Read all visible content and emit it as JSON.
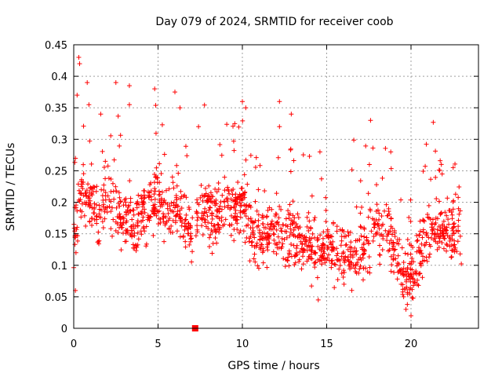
{
  "chart_data": {
    "type": "scatter",
    "title": "Day 079 of 2024, SRMTID for receiver coob",
    "xlabel": "GPS time / hours",
    "ylabel": "SRMTID / TECUs",
    "xlim": [
      0,
      24
    ],
    "ylim": [
      0,
      0.45
    ],
    "x_ticks": [
      0,
      5,
      10,
      15,
      20
    ],
    "y_ticks": [
      0,
      0.05,
      0.1,
      0.15,
      0.2,
      0.25,
      0.3,
      0.35,
      0.4,
      0.45
    ],
    "y_tick_labels": [
      "0",
      "0.05",
      "0.1",
      "0.15",
      "0.2",
      "0.25",
      "0.3",
      "0.35",
      "0.4",
      "0.45"
    ],
    "grid": true,
    "marker": "+",
    "color": "#ff0000",
    "gap_marker": {
      "x": 7.2,
      "y": 0
    },
    "series": [
      {
        "name": "SRMTID",
        "trend": [
          [
            0.0,
            0.14
          ],
          [
            0.5,
            0.22
          ],
          [
            1.0,
            0.2
          ],
          [
            1.5,
            0.17
          ],
          [
            2.0,
            0.22
          ],
          [
            2.5,
            0.18
          ],
          [
            3.0,
            0.17
          ],
          [
            3.5,
            0.16
          ],
          [
            4.0,
            0.18
          ],
          [
            4.5,
            0.2
          ],
          [
            5.0,
            0.21
          ],
          [
            5.5,
            0.18
          ],
          [
            6.0,
            0.2
          ],
          [
            6.5,
            0.17
          ],
          [
            7.0,
            0.14
          ],
          [
            7.5,
            0.19
          ],
          [
            8.0,
            0.18
          ],
          [
            8.5,
            0.19
          ],
          [
            9.0,
            0.19
          ],
          [
            9.5,
            0.19
          ],
          [
            10.0,
            0.2
          ],
          [
            10.5,
            0.16
          ],
          [
            11.0,
            0.14
          ],
          [
            11.5,
            0.15
          ],
          [
            12.0,
            0.16
          ],
          [
            12.5,
            0.14
          ],
          [
            13.0,
            0.15
          ],
          [
            13.5,
            0.13
          ],
          [
            14.0,
            0.14
          ],
          [
            14.5,
            0.12
          ],
          [
            15.0,
            0.14
          ],
          [
            15.5,
            0.12
          ],
          [
            16.0,
            0.11
          ],
          [
            16.5,
            0.12
          ],
          [
            17.0,
            0.12
          ],
          [
            17.5,
            0.14
          ],
          [
            18.0,
            0.16
          ],
          [
            18.5,
            0.16
          ],
          [
            19.0,
            0.12
          ],
          [
            19.5,
            0.09
          ],
          [
            20.0,
            0.08
          ],
          [
            20.5,
            0.12
          ],
          [
            21.0,
            0.16
          ],
          [
            21.5,
            0.15
          ],
          [
            22.0,
            0.16
          ],
          [
            22.5,
            0.15
          ],
          [
            23.0,
            0.16
          ]
        ],
        "spikes": [
          [
            0.3,
            0.43
          ],
          [
            0.35,
            0.42
          ],
          [
            0.2,
            0.37
          ],
          [
            0.8,
            0.39
          ],
          [
            0.9,
            0.355
          ],
          [
            1.6,
            0.34
          ],
          [
            2.5,
            0.39
          ],
          [
            3.3,
            0.385
          ],
          [
            3.3,
            0.355
          ],
          [
            4.8,
            0.38
          ],
          [
            6.0,
            0.375
          ],
          [
            6.3,
            0.35
          ],
          [
            7.4,
            0.32
          ],
          [
            10.0,
            0.36
          ],
          [
            10.2,
            0.35
          ],
          [
            12.2,
            0.36
          ],
          [
            12.2,
            0.32
          ],
          [
            12.9,
            0.34
          ],
          [
            14.6,
            0.28
          ],
          [
            17.6,
            0.33
          ],
          [
            18.8,
            0.28
          ],
          [
            21.8,
            0.26
          ],
          [
            22.5,
            0.255
          ],
          [
            19.7,
            0.03
          ],
          [
            20.0,
            0.02
          ],
          [
            14.5,
            0.045
          ],
          [
            0.1,
            0.06
          ]
        ],
        "range": [
          0,
          23.0
        ]
      }
    ]
  }
}
